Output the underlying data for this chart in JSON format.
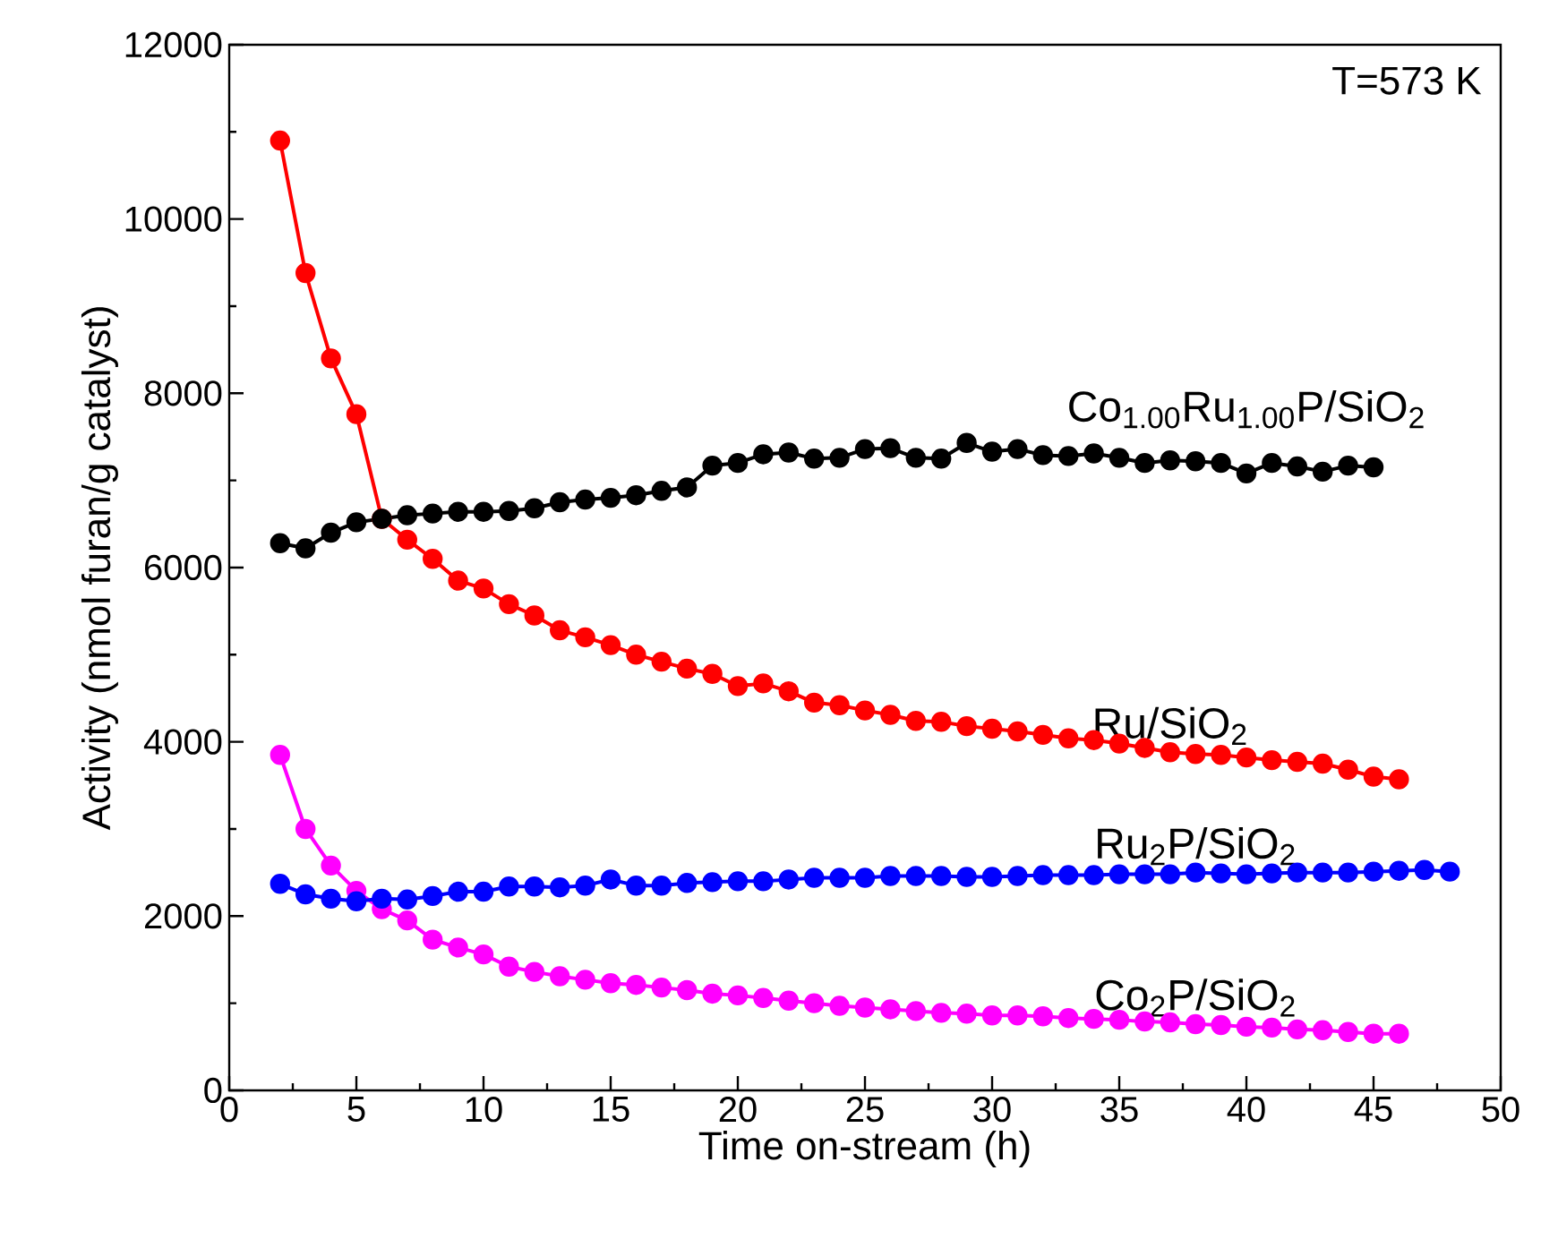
{
  "chart_data": {
    "type": "line",
    "xlabel": "Time on-stream (h)",
    "ylabel": "Activity (nmol furan/g catalyst)",
    "annotations": [
      "T=573 K"
    ],
    "xlim": [
      0,
      50
    ],
    "ylim": [
      0,
      12000
    ],
    "xticks": [
      0,
      5,
      10,
      15,
      20,
      25,
      30,
      35,
      40,
      45,
      50
    ],
    "yticks": [
      0,
      2000,
      4000,
      6000,
      8000,
      10000,
      12000
    ],
    "marker": "circle",
    "line_style": "solid",
    "series": [
      {
        "name": "Co$_{1.00}$Ru$_{1.00}$P/SiO$_{2}$",
        "color": "#000000",
        "x": [
          2,
          3,
          4,
          5,
          6,
          7,
          8,
          9,
          10,
          11,
          12,
          13,
          14,
          15,
          16,
          17,
          18,
          19,
          20,
          21,
          22,
          23,
          24,
          25,
          26,
          27,
          28,
          29,
          30,
          31,
          32,
          33,
          34,
          35,
          36,
          37,
          38,
          39,
          40,
          41,
          42,
          43,
          44,
          45
        ],
        "values": [
          6280,
          6220,
          6400,
          6520,
          6560,
          6600,
          6620,
          6640,
          6640,
          6650,
          6680,
          6750,
          6780,
          6800,
          6830,
          6880,
          6920,
          7170,
          7200,
          7300,
          7320,
          7250,
          7260,
          7360,
          7370,
          7260,
          7250,
          7430,
          7330,
          7360,
          7290,
          7280,
          7310,
          7260,
          7200,
          7230,
          7220,
          7200,
          7080,
          7200,
          7160,
          7100,
          7170,
          7150
        ]
      },
      {
        "name": "Ru/SiO$_{2}$",
        "color": "#ff0000",
        "x": [
          2,
          3,
          4,
          5,
          6,
          7,
          8,
          9,
          10,
          11,
          12,
          13,
          14,
          15,
          16,
          17,
          18,
          19,
          20,
          21,
          22,
          23,
          24,
          25,
          26,
          27,
          28,
          29,
          30,
          31,
          32,
          33,
          34,
          35,
          36,
          37,
          38,
          39,
          40,
          41,
          42,
          43,
          44,
          45,
          46
        ],
        "values": [
          10900,
          9380,
          8400,
          7760,
          6560,
          6320,
          6100,
          5850,
          5760,
          5580,
          5450,
          5280,
          5200,
          5110,
          5000,
          4920,
          4840,
          4780,
          4640,
          4670,
          4580,
          4450,
          4420,
          4360,
          4310,
          4240,
          4230,
          4180,
          4150,
          4120,
          4080,
          4040,
          4020,
          3980,
          3930,
          3880,
          3860,
          3850,
          3820,
          3790,
          3770,
          3750,
          3680,
          3600,
          3570
        ]
      },
      {
        "name": "Ru$_{2}$P/SiO$_{2}$",
        "color": "#0000ff",
        "x": [
          2,
          3,
          4,
          5,
          6,
          7,
          8,
          9,
          10,
          11,
          12,
          13,
          14,
          15,
          16,
          17,
          18,
          19,
          20,
          21,
          22,
          23,
          24,
          25,
          26,
          27,
          28,
          29,
          30,
          31,
          32,
          33,
          34,
          35,
          36,
          37,
          38,
          39,
          40,
          41,
          42,
          43,
          44,
          45,
          46,
          47,
          48
        ],
        "values": [
          2370,
          2250,
          2200,
          2170,
          2200,
          2190,
          2230,
          2280,
          2280,
          2340,
          2340,
          2330,
          2350,
          2420,
          2350,
          2350,
          2380,
          2390,
          2400,
          2400,
          2420,
          2440,
          2440,
          2440,
          2460,
          2460,
          2460,
          2450,
          2450,
          2460,
          2470,
          2470,
          2470,
          2480,
          2480,
          2480,
          2500,
          2490,
          2480,
          2490,
          2500,
          2500,
          2500,
          2510,
          2520,
          2530,
          2510
        ]
      },
      {
        "name": "Co$_{2}$P/SiO$_{2}$",
        "color": "#ff00ff",
        "x": [
          2,
          3,
          4,
          5,
          6,
          7,
          8,
          9,
          10,
          11,
          12,
          13,
          14,
          15,
          16,
          17,
          18,
          19,
          20,
          21,
          22,
          23,
          24,
          25,
          26,
          27,
          28,
          29,
          30,
          31,
          32,
          33,
          34,
          35,
          36,
          37,
          38,
          39,
          40,
          41,
          42,
          43,
          44,
          45,
          46
        ],
        "values": [
          3850,
          3000,
          2580,
          2290,
          2080,
          1950,
          1730,
          1640,
          1560,
          1420,
          1360,
          1310,
          1270,
          1230,
          1210,
          1180,
          1150,
          1110,
          1090,
          1060,
          1030,
          1000,
          970,
          950,
          930,
          910,
          890,
          880,
          860,
          860,
          850,
          830,
          820,
          810,
          790,
          780,
          760,
          750,
          730,
          720,
          700,
          690,
          670,
          650,
          650
        ]
      }
    ]
  }
}
